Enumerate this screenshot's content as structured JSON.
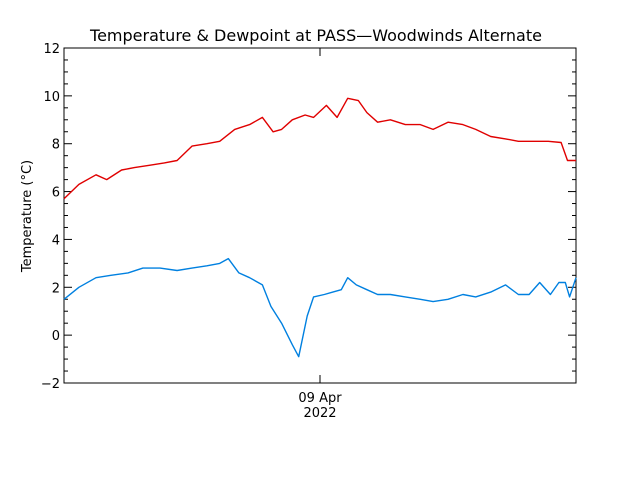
{
  "chart_data": {
    "type": "line",
    "title": "Temperature & Dewpoint at PASS—Woodwinds Alternate",
    "ylabel": "Temperature (°C)",
    "xlabel": "",
    "x_tick_label": "09 Apr",
    "x_tick_label_year": "2022",
    "ylim": [
      -2,
      12
    ],
    "y_ticks": [
      -2,
      0,
      2,
      4,
      6,
      8,
      10,
      12
    ],
    "y_tick_labels": [
      "−2",
      "0",
      "2",
      "4",
      "6",
      "8",
      "10",
      "12"
    ],
    "x_range_hours": [
      -12,
      12
    ],
    "x_tick_hour": 0,
    "grid": false,
    "legend": "none",
    "series": [
      {
        "color": "#e00000",
        "x": [
          -12,
          -11.3,
          -10.5,
          -10,
          -9.3,
          -8.7,
          -8,
          -7.3,
          -6.7,
          -6,
          -5.3,
          -4.7,
          -4,
          -3.3,
          -2.7,
          -2.2,
          -1.8,
          -1.3,
          -0.7,
          -0.3,
          0.3,
          0.8,
          1.3,
          1.8,
          2.2,
          2.7,
          3.3,
          4,
          4.7,
          5.3,
          6,
          6.7,
          7.3,
          8,
          8.7,
          9.3,
          10,
          10.7,
          11.3,
          11.6,
          12
        ],
        "y": [
          5.7,
          6.3,
          6.7,
          6.5,
          6.9,
          7.0,
          7.1,
          7.2,
          7.3,
          7.9,
          8.0,
          8.1,
          8.6,
          8.8,
          9.1,
          8.5,
          8.6,
          9.0,
          9.2,
          9.1,
          9.6,
          9.1,
          9.9,
          9.8,
          9.3,
          8.9,
          9.0,
          8.8,
          8.8,
          8.6,
          8.9,
          8.8,
          8.6,
          8.3,
          8.2,
          8.1,
          8.1,
          8.1,
          8.05,
          7.3,
          7.3
        ]
      },
      {
        "color": "#0080e0",
        "x": [
          -12,
          -11.3,
          -10.5,
          -9.8,
          -9,
          -8.3,
          -7.5,
          -6.7,
          -6,
          -5.3,
          -4.7,
          -4.3,
          -3.8,
          -3.3,
          -2.7,
          -2.3,
          -1.8,
          -1.3,
          -1,
          -0.6,
          -0.3,
          0.2,
          0.6,
          1,
          1.3,
          1.7,
          2.2,
          2.7,
          3.3,
          4,
          4.7,
          5.3,
          6,
          6.7,
          7.3,
          8,
          8.7,
          9.3,
          9.8,
          10.3,
          10.8,
          11.2,
          11.5,
          11.7,
          12
        ],
        "y": [
          1.5,
          2.0,
          2.4,
          2.5,
          2.6,
          2.8,
          2.8,
          2.7,
          2.8,
          2.9,
          3.0,
          3.2,
          2.6,
          2.4,
          2.1,
          1.2,
          0.5,
          -0.4,
          -0.9,
          0.8,
          1.6,
          1.7,
          1.8,
          1.9,
          2.4,
          2.1,
          1.9,
          1.7,
          1.7,
          1.6,
          1.5,
          1.4,
          1.5,
          1.7,
          1.6,
          1.8,
          2.1,
          1.7,
          1.7,
          2.2,
          1.7,
          2.2,
          2.2,
          1.6,
          2.4
        ]
      }
    ]
  }
}
